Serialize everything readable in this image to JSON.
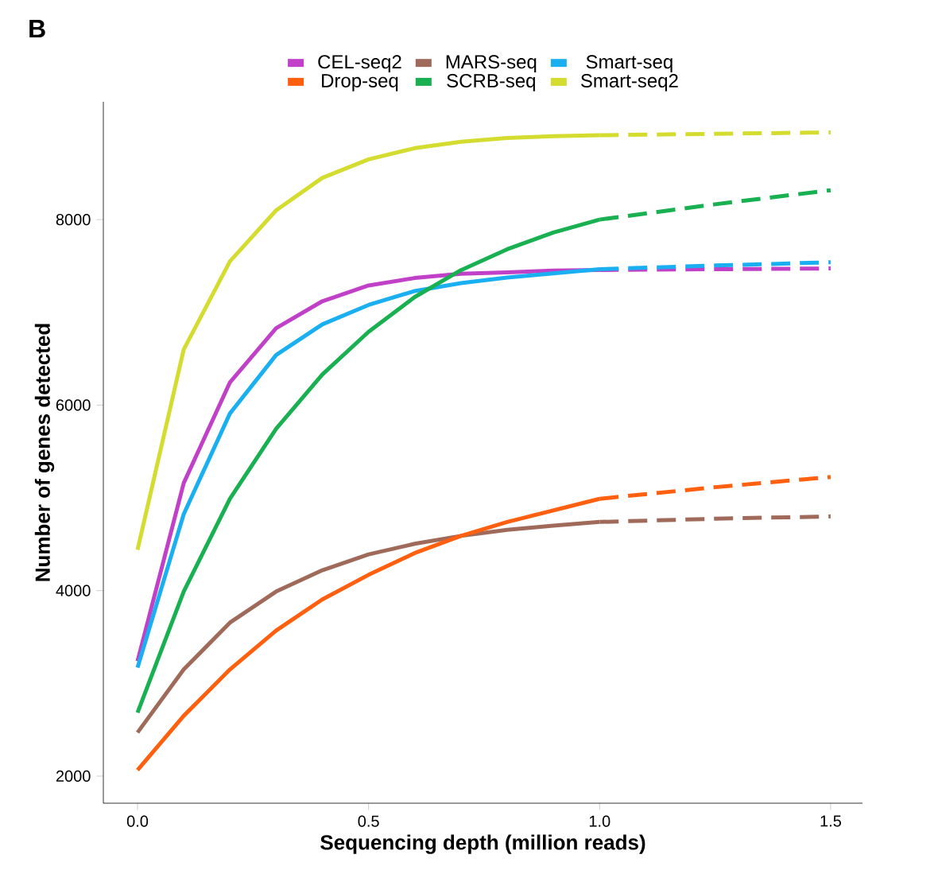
{
  "chart_data": {
    "type": "line",
    "xlabel": "Sequencing depth (million reads)",
    "ylabel": "Number of genes detected",
    "annotations": [
      "B"
    ],
    "xlim": [
      -0.074,
      1.569
    ],
    "ylim": [
      1708,
      9270
    ],
    "xticks": [
      {
        "value": 0,
        "label": "0.0"
      },
      {
        "value": 0.5,
        "label": "0.5"
      },
      {
        "value": 1,
        "label": "1.0"
      },
      {
        "value": 1.5,
        "label": "1.5"
      }
    ],
    "yticks": [
      2000,
      4000,
      6000,
      8000
    ],
    "legend": "top",
    "marker": "none",
    "line_style": "solid",
    "series": [
      {
        "name": "CEL-seq2",
        "color": "#c040c8",
        "x": [
          0,
          0.1,
          0.2,
          0.3,
          0.4,
          0.5,
          0.6,
          0.7,
          0.8,
          0.9,
          1.0
        ],
        "values": [
          3240,
          5160,
          6245,
          6830,
          7120,
          7290,
          7370,
          7415,
          7430,
          7450,
          7457
        ]
      },
      {
        "name": "MARS-seq",
        "color": "#a06a5a",
        "x": [
          0,
          0.1,
          0.2,
          0.3,
          0.4,
          0.5,
          0.6,
          0.7,
          0.8,
          0.9,
          1.0
        ],
        "values": [
          2470,
          3150,
          3655,
          3990,
          4220,
          4390,
          4505,
          4590,
          4655,
          4700,
          4740
        ]
      },
      {
        "name": "Smart-seq",
        "color": "#1aaff0",
        "x": [
          0,
          0.1,
          0.2,
          0.3,
          0.4,
          0.5,
          0.6,
          0.7,
          0.8,
          0.9,
          1.0
        ],
        "values": [
          3170,
          4825,
          5910,
          6540,
          6870,
          7080,
          7230,
          7315,
          7375,
          7420,
          7465
        ]
      },
      {
        "name": "Drop-seq",
        "color": "#ff6010",
        "x": [
          0,
          0.1,
          0.2,
          0.3,
          0.4,
          0.5,
          0.6,
          0.7,
          0.8,
          0.9,
          1.0
        ],
        "values": [
          2065,
          2650,
          3150,
          3570,
          3905,
          4170,
          4405,
          4590,
          4740,
          4865,
          4990
        ]
      },
      {
        "name": "SCRB-seq",
        "color": "#18b050",
        "x": [
          0,
          0.1,
          0.2,
          0.3,
          0.4,
          0.5,
          0.6,
          0.7,
          0.8,
          0.9,
          1.0
        ],
        "values": [
          2685,
          3990,
          4990,
          5745,
          6330,
          6790,
          7165,
          7455,
          7680,
          7860,
          8000
        ]
      },
      {
        "name": "Smart-seq2",
        "color": "#d4dc30",
        "x": [
          0,
          0.1,
          0.2,
          0.3,
          0.4,
          0.5,
          0.6,
          0.7,
          0.8,
          0.9,
          1.0
        ],
        "values": [
          4440,
          6600,
          7550,
          8100,
          8450,
          8650,
          8770,
          8840,
          8880,
          8900,
          8910
        ]
      },
      {
        "color": "#c040c8",
        "line_style": "dashed",
        "x": [
          1.0,
          1.25,
          1.5
        ],
        "values": [
          7457,
          7465,
          7473
        ]
      },
      {
        "color": "#a06a5a",
        "line_style": "dashed",
        "x": [
          1.0,
          1.25,
          1.5
        ],
        "values": [
          4740,
          4775,
          4800
        ]
      },
      {
        "color": "#1aaff0",
        "line_style": "dashed",
        "x": [
          1.0,
          1.25,
          1.5
        ],
        "values": [
          7465,
          7505,
          7540
        ]
      },
      {
        "color": "#ff6010",
        "line_style": "dashed",
        "x": [
          1.0,
          1.25,
          1.5
        ],
        "values": [
          4990,
          5115,
          5225
        ]
      },
      {
        "color": "#18b050",
        "line_style": "dashed",
        "x": [
          1.0,
          1.25,
          1.5
        ],
        "values": [
          8000,
          8165,
          8317
        ]
      },
      {
        "color": "#d4dc30",
        "line_style": "dashed",
        "x": [
          1.0,
          1.25,
          1.5
        ],
        "values": [
          8910,
          8925,
          8940
        ]
      }
    ]
  }
}
